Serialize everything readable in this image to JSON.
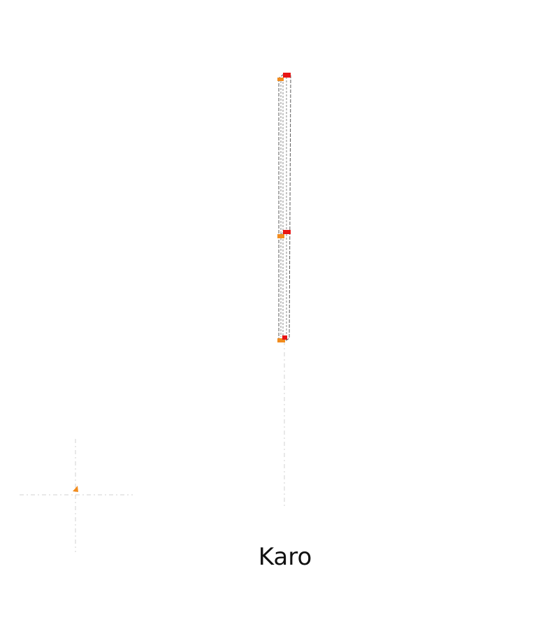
{
  "label": "Karo",
  "colors": {
    "guide": "#d9d9d9",
    "outline": "#8a8a8a",
    "start_marker": "#f28c1e",
    "end_marker": "#e81414",
    "label": "#111111"
  }
}
